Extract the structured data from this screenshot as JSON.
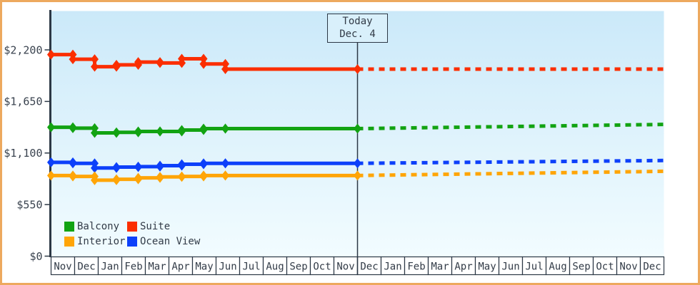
{
  "today_marker": {
    "line1": "Today",
    "line2": "Dec. 4"
  },
  "y_axis": {
    "tick_labels": [
      "$2,200",
      "$1,650",
      "$1,100",
      "$550",
      "$0"
    ],
    "tick_values": [
      2200,
      1650,
      1100,
      550,
      0
    ]
  },
  "x_axis": {
    "months": [
      "Nov",
      "Dec",
      "Jan",
      "Feb",
      "Mar",
      "Apr",
      "May",
      "Jun",
      "Jul",
      "Aug",
      "Sep",
      "Oct",
      "Nov",
      "Dec",
      "Jan",
      "Feb",
      "Mar",
      "Apr",
      "May",
      "Jun",
      "Jul",
      "Aug",
      "Sep",
      "Oct",
      "Nov",
      "Dec"
    ]
  },
  "legend": {
    "items": [
      {
        "label": "Balcony",
        "color": "#12a312"
      },
      {
        "label": "Suite",
        "color": "#fb2e00"
      },
      {
        "label": "Interior",
        "color": "#ffa507"
      },
      {
        "label": "Ocean View",
        "color": "#0d40fa"
      }
    ]
  },
  "colors": {
    "accent_border": "#eda95e",
    "axis_dark": "#2c3845",
    "plot_bg_top": "#cbe9f9",
    "plot_bg_bottom": "#f2fcff",
    "today_box_bg": "#d9f0fb"
  },
  "chart_data": {
    "type": "line",
    "title": "",
    "currency": "USD",
    "ylim": [
      0,
      2200
    ],
    "y_tick_values": [
      0,
      550,
      1100,
      1650,
      2200
    ],
    "x_tick_labels": [
      "Nov",
      "Dec",
      "Jan",
      "Feb",
      "Mar",
      "Apr",
      "May",
      "Jun",
      "Jul",
      "Aug",
      "Sep",
      "Oct",
      "Nov",
      "Dec",
      "Jan",
      "Feb",
      "Mar",
      "Apr",
      "May",
      "Jun",
      "Jul",
      "Aug",
      "Sep",
      "Oct",
      "Nov",
      "Dec"
    ],
    "grid": false,
    "legend_position": "bottom-left",
    "today_label": "Today Dec. 4",
    "today_month_index": 13,
    "history_note": "Step lines with diamond markers at 9 observations (~4-week intervals) from first Nov tick to mid-June, then flat to today's marker; dashed lines after today are forecasts extending to the right edge.",
    "series": [
      {
        "name": "Suite",
        "color": "#fb2e00",
        "history_values": [
          2150,
          2100,
          2020,
          2040,
          2070,
          2060,
          2105,
          2050,
          1995
        ],
        "today_value": 1995,
        "forecast_end_value": 1995,
        "history_style": "solid",
        "forecast_style": "dashed"
      },
      {
        "name": "Balcony",
        "color": "#12a312",
        "history_values": [
          1375,
          1365,
          1315,
          1320,
          1330,
          1330,
          1345,
          1360,
          1360
        ],
        "today_value": 1360,
        "forecast_end_value": 1405,
        "history_style": "solid",
        "forecast_style": "dashed"
      },
      {
        "name": "Ocean View",
        "color": "#0d40fa",
        "history_values": [
          1000,
          990,
          940,
          950,
          955,
          965,
          980,
          990,
          990
        ],
        "today_value": 990,
        "forecast_end_value": 1020,
        "history_style": "solid",
        "forecast_style": "dashed"
      },
      {
        "name": "Interior",
        "color": "#ffa507",
        "history_values": [
          860,
          850,
          810,
          820,
          835,
          845,
          850,
          860,
          860
        ],
        "today_value": 860,
        "forecast_end_value": 905,
        "history_style": "solid",
        "forecast_style": "dashed"
      }
    ]
  }
}
